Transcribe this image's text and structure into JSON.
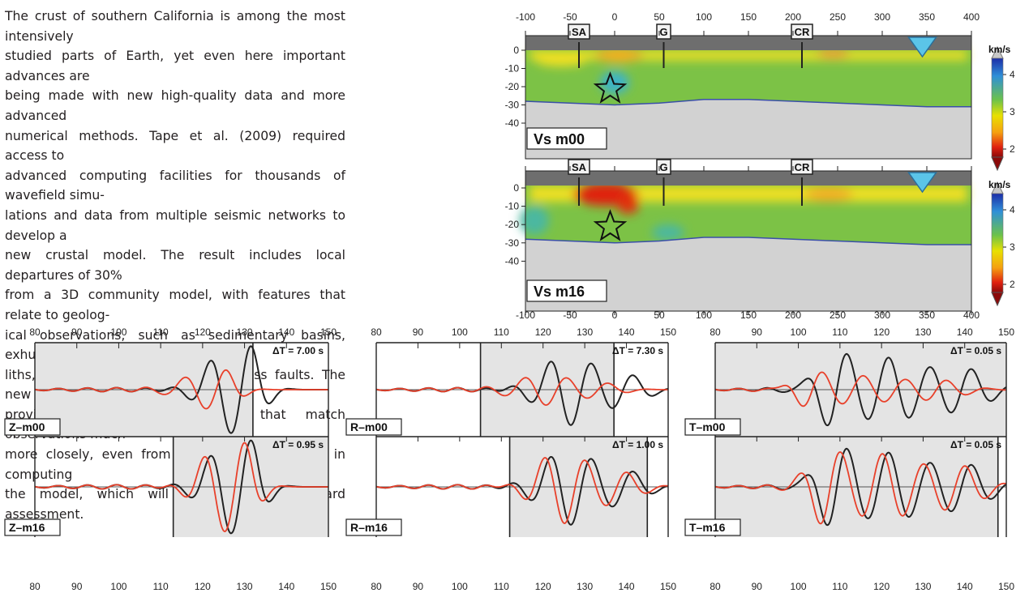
{
  "paragraph": {
    "lines": [
      "The crust of southern California is among the most intensively",
      "studied parts of Earth, yet even here important advances are",
      "being made with new high-quality data and more advanced",
      "numerical methods. Tape et al. (2009) required access to",
      "advanced computing facilities for thousands of wavefield simu-",
      "lations and data from multiple seismic networks to develop a",
      "new crustal model. The result includes local departures of 30%",
      "from a 3D community model, with features that relate to geolog-",
      "ical observations, such as sedimentary basins, exhumed batho-",
      "liths, and contrasting lithologies across faults. The new model",
      "provides synthetic seismograms that match observations much",
      "more closely, even from earthquakes not used in computing",
      "the model, which will benefit seismic hazard assessment."
    ]
  },
  "cross_sections": {
    "x_ticks": [
      "-100",
      "-50",
      "0",
      "50",
      "100",
      "150",
      "200",
      "250",
      "300",
      "350",
      "400"
    ],
    "y_ticks": [
      "0",
      "-10",
      "-20",
      "-30",
      "-40"
    ],
    "markers": [
      "SA",
      "G",
      "CR"
    ],
    "colorbar": {
      "unit": "km/s",
      "ticks": [
        "4",
        "3",
        "2"
      ],
      "colors": [
        "#1c2ea8",
        "#2f8fd8",
        "#6cc24a",
        "#e8e000",
        "#f5a010",
        "#e02010",
        "#8b0a0a"
      ]
    },
    "panels": [
      {
        "label": "Vs  m00"
      },
      {
        "label": "Vs  m16"
      }
    ]
  },
  "seismograms": {
    "x_ticks": [
      "80",
      "90",
      "100",
      "110",
      "120",
      "130",
      "140",
      "150"
    ],
    "colors": {
      "observed": "#222222",
      "synthetic": "#e8402a",
      "window": "#e4e4e4"
    },
    "panels": [
      {
        "label": "Z–m00",
        "dt": "ΔT = 7.00 s"
      },
      {
        "label": "Z–m16",
        "dt": "ΔT = 0.95 s"
      },
      {
        "label": "R–m00",
        "dt": "ΔT = 7.30 s"
      },
      {
        "label": "R–m16",
        "dt": "ΔT = 1.00 s"
      },
      {
        "label": "T–m00",
        "dt": "ΔT = 0.05 s"
      },
      {
        "label": "T–m16",
        "dt": "ΔT = 0.05 s"
      }
    ]
  }
}
